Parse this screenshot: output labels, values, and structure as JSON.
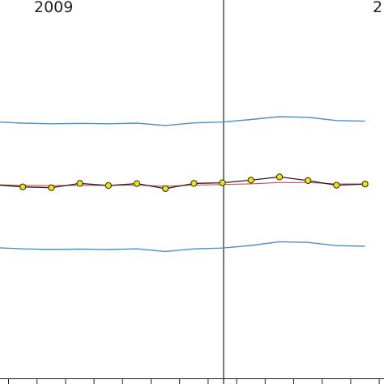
{
  "chart_data": {
    "type": "line",
    "title": "",
    "xlabel": "",
    "ylabel": "",
    "year_labels": [
      "2009",
      "2"
    ],
    "x": [
      0,
      1,
      2,
      3,
      4,
      5,
      6,
      7,
      8,
      9,
      10,
      11,
      12,
      13
    ],
    "series": [
      {
        "values": [
          0.75,
          0.58,
          0.52,
          0.85,
          0.69,
          0.84,
          0.45,
          0.85,
          0.9,
          1.1,
          1.35,
          1.07,
          0.71,
          0.8
        ]
      },
      {
        "values": [
          0.75,
          0.7,
          0.68,
          0.7,
          0.7,
          0.72,
          0.64,
          0.72,
          0.76,
          0.82,
          0.92,
          0.92,
          0.82,
          0.81
        ]
      },
      {
        "values": [
          5.6,
          5.5,
          5.45,
          5.48,
          5.45,
          5.5,
          5.32,
          5.52,
          5.58,
          5.78,
          6.0,
          5.95,
          5.7,
          5.65
        ]
      },
      {
        "values": [
          -4.1,
          -4.2,
          -4.25,
          -4.22,
          -4.25,
          -4.2,
          -4.4,
          -4.2,
          -4.14,
          -3.94,
          -3.65,
          -3.7,
          -3.95,
          -4.0
        ]
      }
    ],
    "colors": {
      "observed": "#222222",
      "marker_fill": "#f2e600",
      "mean": "#d05050",
      "band": "#4f8fc8",
      "divider": "#222222"
    },
    "axis_ticks": 14,
    "grid": false,
    "legend": "none"
  }
}
